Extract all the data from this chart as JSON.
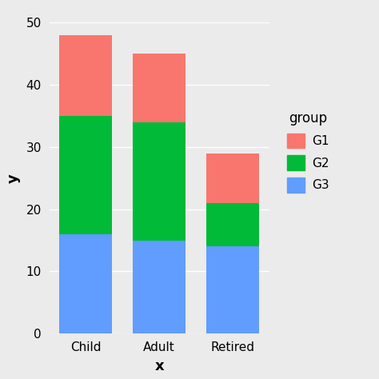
{
  "categories": [
    "Child",
    "Adult",
    "Retired"
  ],
  "G3": [
    16,
    15,
    14
  ],
  "G2": [
    19,
    19,
    7
  ],
  "G1": [
    13,
    11,
    8
  ],
  "colors": {
    "G1": "#F8766D",
    "G2": "#00BA38",
    "G3": "#619CFF"
  },
  "xlabel": "x",
  "ylabel": "y",
  "ylim": [
    0,
    50
  ],
  "yticks": [
    0,
    10,
    20,
    30,
    40,
    50
  ],
  "legend_title": "group",
  "background_color": "#EBEBEB",
  "panel_color": "#EBEBEB",
  "grid_color": "#FFFFFF",
  "bar_width": 0.72
}
